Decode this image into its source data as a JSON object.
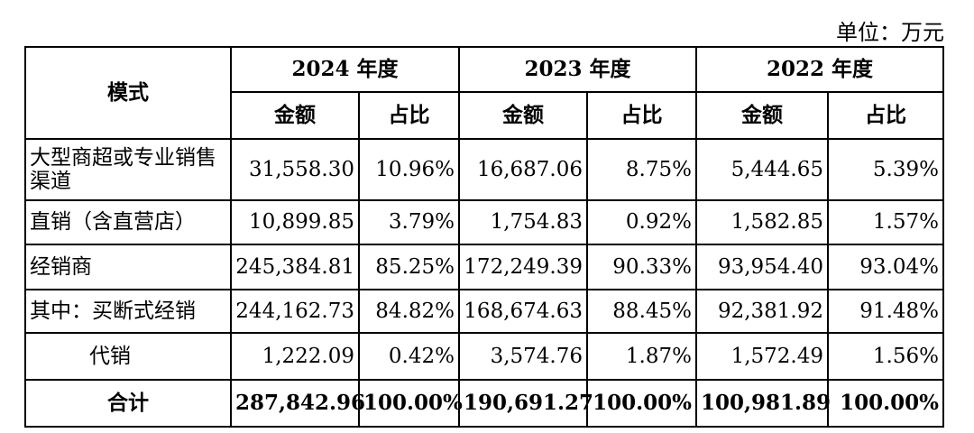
{
  "unit_label": "单位：万元",
  "header": {
    "mode": "模式",
    "years": [
      "2024 年度",
      "2023 年度",
      "2022 年度"
    ],
    "amount": "金额",
    "ratio": "占比"
  },
  "rows": [
    {
      "label": "大型商超或专业销售渠道",
      "cells": [
        "31,558.30",
        "10.96%",
        "16,687.06",
        "8.75%",
        "5,444.65",
        "5.39%"
      ]
    },
    {
      "label": "直销（含直营店）",
      "cells": [
        "10,899.85",
        "3.79%",
        "1,754.83",
        "0.92%",
        "1,582.85",
        "1.57%"
      ]
    },
    {
      "label": "经销商",
      "cells": [
        "245,384.81",
        "85.25%",
        "172,249.39",
        "90.33%",
        "93,954.40",
        "93.04%"
      ]
    },
    {
      "label": "其中：买断式经销",
      "cells": [
        "244,162.73",
        "84.82%",
        "168,674.63",
        "88.45%",
        "92,381.92",
        "91.48%"
      ]
    },
    {
      "label": "代销",
      "cells": [
        "1,222.09",
        "0.42%",
        "3,574.76",
        "1.87%",
        "1,572.49",
        "1.56%"
      ]
    },
    {
      "label": "合计",
      "cells": [
        "287,842.96",
        "100.00%",
        "190,691.27",
        "100.00%",
        "100,981.89",
        "100.00%"
      ]
    }
  ]
}
